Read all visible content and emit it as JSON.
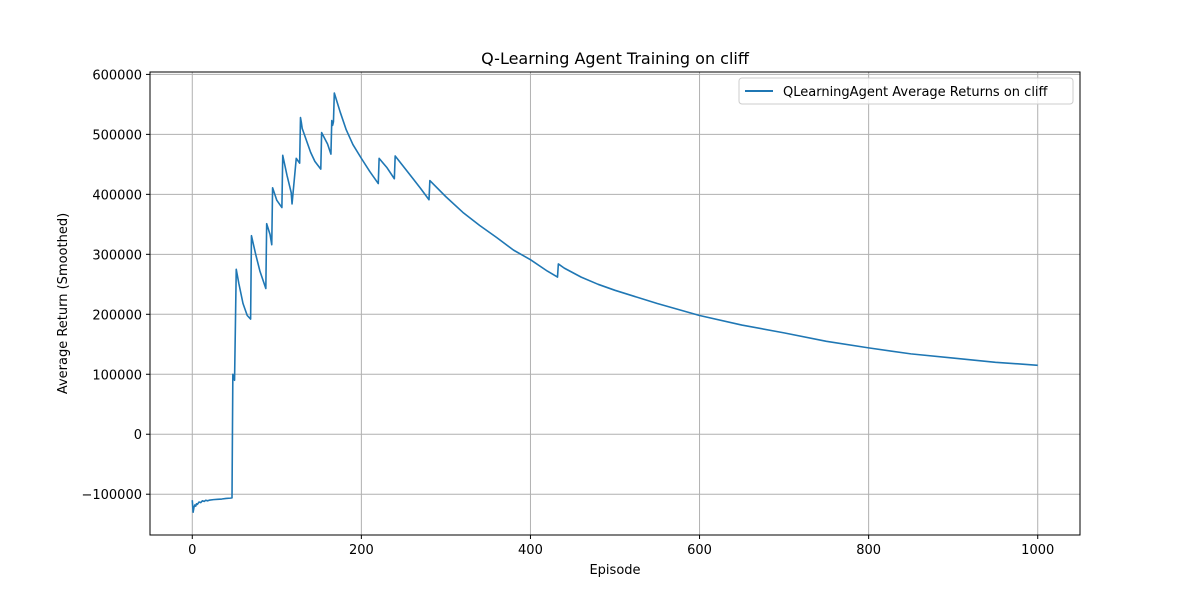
{
  "chart_data": {
    "type": "line",
    "title": "Q-Learning Agent Training on cliff",
    "xlabel": "Episode",
    "ylabel": "Average Return (Smoothed)",
    "xlim": [
      -50,
      1050
    ],
    "ylim": [
      -168000,
      604000
    ],
    "xticks": [
      0,
      200,
      400,
      600,
      800,
      1000
    ],
    "xtick_labels": [
      "0",
      "200",
      "400",
      "600",
      "800",
      "1000"
    ],
    "yticks": [
      -100000,
      0,
      100000,
      200000,
      300000,
      400000,
      500000,
      600000
    ],
    "ytick_labels": [
      "−100000",
      "0",
      "100000",
      "200000",
      "300000",
      "400000",
      "500000",
      "600000"
    ],
    "grid": true,
    "legend": "top-right",
    "colors": {
      "line": "#1f77b4",
      "grid": "#b0b0b0"
    },
    "series": [
      {
        "name": "QLearningAgent Average Returns on cliff",
        "x": [
          0,
          1,
          2,
          3,
          4,
          5,
          6,
          8,
          10,
          12,
          14,
          16,
          18,
          20,
          25,
          30,
          35,
          40,
          45,
          47,
          47.5,
          48,
          49,
          50,
          51,
          52,
          55,
          60,
          65,
          69,
          70,
          75,
          80,
          87,
          88,
          92,
          94,
          95,
          100,
          106,
          107,
          112,
          117,
          118,
          123,
          127,
          128,
          129,
          130,
          135,
          140,
          145,
          152,
          153,
          160,
          164,
          165,
          166,
          167,
          168,
          175,
          182,
          190,
          200,
          210,
          220,
          221,
          230,
          239,
          240,
          250,
          260,
          270,
          280,
          281,
          300,
          320,
          340,
          360,
          380,
          400,
          420,
          432,
          433,
          440,
          460,
          480,
          500,
          550,
          600,
          650,
          700,
          750,
          800,
          850,
          900,
          950,
          1000
        ],
        "y": [
          -110000,
          -130000,
          -122000,
          -118000,
          -120000,
          -116000,
          -117000,
          -113000,
          -114000,
          -111000,
          -112000,
          -110000,
          -111000,
          -110000,
          -109000,
          -108500,
          -108000,
          -107000,
          -106500,
          -106000,
          0,
          100000,
          95000,
          90000,
          180000,
          275000,
          252000,
          218000,
          198000,
          192000,
          331000,
          300000,
          272000,
          243000,
          351000,
          333000,
          316000,
          411000,
          390000,
          378000,
          465000,
          432000,
          403000,
          384000,
          460000,
          452000,
          528000,
          520000,
          510000,
          490000,
          470000,
          455000,
          442000,
          503000,
          484000,
          467000,
          523000,
          515000,
          521000,
          569000,
          537000,
          508000,
          483000,
          460000,
          438000,
          418000,
          460000,
          445000,
          426000,
          464000,
          446000,
          428000,
          410000,
          391000,
          423000,
          396000,
          370000,
          348000,
          328000,
          307000,
          291000,
          272000,
          262000,
          284000,
          277000,
          262000,
          250000,
          240000,
          218000,
          198000,
          182000,
          169000,
          155000,
          144000,
          134000,
          127000,
          120000,
          115000
        ]
      }
    ]
  }
}
